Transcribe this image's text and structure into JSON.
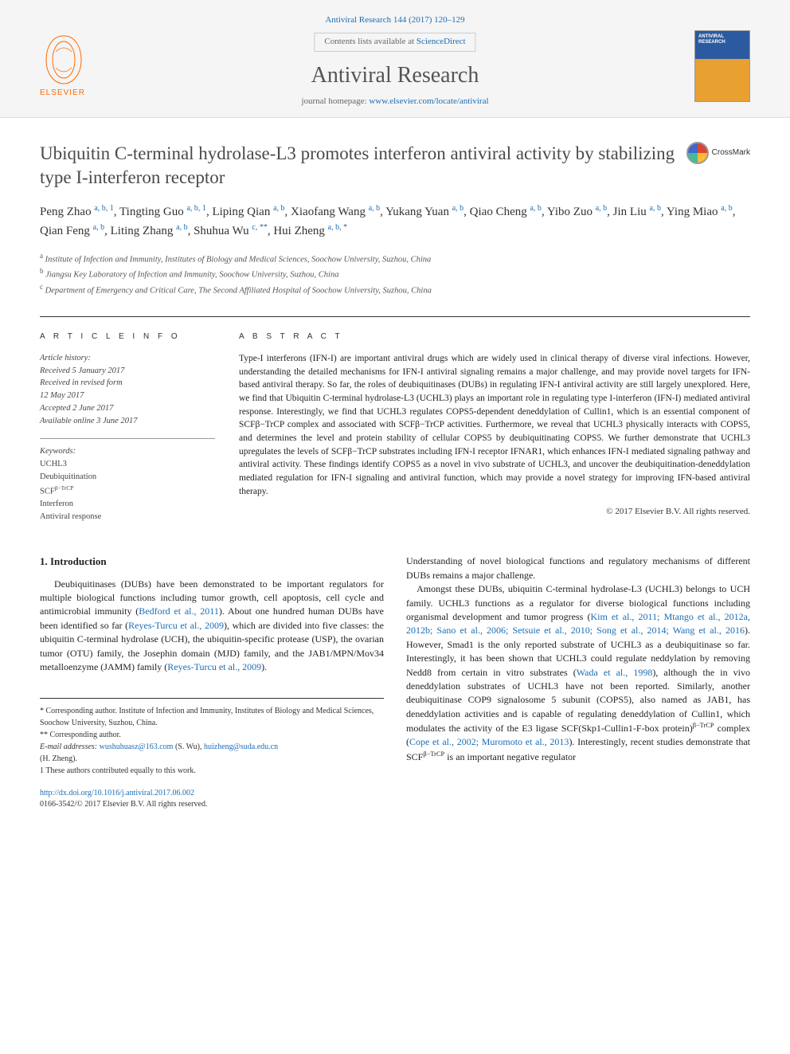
{
  "header": {
    "journal_ref": "Antiviral Research 144 (2017) 120–129",
    "contents_line_prefix": "Contents lists available at ",
    "contents_link": "ScienceDirect",
    "journal_name": "Antiviral Research",
    "homepage_prefix": "journal homepage: ",
    "homepage_url": "www.elsevier.com/locate/antiviral",
    "publisher": "ELSEVIER",
    "crossmark": "CrossMark"
  },
  "title": "Ubiquitin C-terminal hydrolase-L3 promotes interferon antiviral activity by stabilizing type I-interferon receptor",
  "authors_html": "Peng Zhao <sup>a, b, 1</sup>, Tingting Guo <sup>a, b, 1</sup>, Liping Qian <sup>a, b</sup>, Xiaofang Wang <sup>a, b</sup>, Yukang Yuan <sup>a, b</sup>, Qiao Cheng <sup>a, b</sup>, Yibo Zuo <sup>a, b</sup>, Jin Liu <sup>a, b</sup>, Ying Miao <sup>a, b</sup>, Qian Feng <sup>a, b</sup>, Liting Zhang <sup>a, b</sup>, Shuhua Wu <sup>c, **</sup>, Hui Zheng <sup>a, b, *</sup>",
  "affiliations": [
    {
      "sup": "a",
      "text": "Institute of Infection and Immunity, Institutes of Biology and Medical Sciences, Soochow University, Suzhou, China"
    },
    {
      "sup": "b",
      "text": "Jiangsu Key Laboratory of Infection and Immunity, Soochow University, Suzhou, China"
    },
    {
      "sup": "c",
      "text": "Department of Emergency and Critical Care, The Second Affiliated Hospital of Soochow University, Suzhou, China"
    }
  ],
  "article_info": {
    "heading": "A R T I C L E   I N F O",
    "history_heading": "Article history:",
    "history": [
      "Received 5 January 2017",
      "Received in revised form",
      "12 May 2017",
      "Accepted 2 June 2017",
      "Available online 3 June 2017"
    ],
    "keywords_heading": "Keywords:",
    "keywords": [
      "UCHL3",
      "Deubiquitination",
      "SCFβ−TrCP",
      "Interferon",
      "Antiviral response"
    ]
  },
  "abstract": {
    "heading": "A B S T R A C T",
    "text": "Type-I interferons (IFN-I) are important antiviral drugs which are widely used in clinical therapy of diverse viral infections. However, understanding the detailed mechanisms for IFN-I antiviral signaling remains a major challenge, and may provide novel targets for IFN-based antiviral therapy. So far, the roles of deubiquitinases (DUBs) in regulating IFN-I antiviral activity are still largely unexplored. Here, we find that Ubiquitin C-terminal hydrolase-L3 (UCHL3) plays an important role in regulating type I-interferon (IFN-I) mediated antiviral response. Interestingly, we find that UCHL3 regulates COPS5-dependent deneddylation of Cullin1, which is an essential component of SCFβ−TrCP complex and associated with SCFβ−TrCP activities. Furthermore, we reveal that UCHL3 physically interacts with COPS5, and determines the level and protein stability of cellular COPS5 by deubiquitinating COPS5. We further demonstrate that UCHL3 upregulates the levels of SCFβ−TrCP substrates including IFN-I receptor IFNAR1, which enhances IFN-I mediated signaling pathway and antiviral activity. These findings identify COPS5 as a novel in vivo substrate of UCHL3, and uncover the deubiquitination-deneddylation mediated regulation for IFN-I signaling and antiviral function, which may provide a novel strategy for improving IFN-based antiviral therapy.",
    "copyright": "© 2017 Elsevier B.V. All rights reserved."
  },
  "intro": {
    "heading": "1. Introduction",
    "col1_html": "Deubiquitinases (DUBs) have been demonstrated to be important regulators for multiple biological functions including tumor growth, cell apoptosis, cell cycle and antimicrobial immunity (<a href='#'>Bedford et al., 2011</a>). About one hundred human DUBs have been identified so far (<a href='#'>Reyes-Turcu et al., 2009</a>), which are divided into five classes: the ubiquitin C-terminal hydrolase (UCH), the ubiquitin-specific protease (USP), the ovarian tumor (OTU) family, the Josephin domain (MJD) family, and the JAB1/MPN/Mov34 metalloenzyme (JAMM) family (<a href='#'>Reyes-Turcu et al., 2009</a>).",
    "col2_html": "Understanding of novel biological functions and regulatory mechanisms of different DUBs remains a major challenge.<br>&nbsp;&nbsp;&nbsp;Amongst these DUBs, ubiquitin C-terminal hydrolase-L3 (UCHL3) belongs to UCH family. UCHL3 functions as a regulator for diverse biological functions including organismal development and tumor progress (<a href='#'>Kim et al., 2011; Mtango et al., 2012a, 2012b; Sano et al., 2006; Setsuie et al., 2010; Song et al., 2014; Wang et al., 2016</a>). However, Smad1 is the only reported substrate of UCHL3 as a deubiquitinase so far. Interestingly, it has been shown that UCHL3 could regulate neddylation by removing Nedd8 from certain in vitro substrates (<a href='#'>Wada et al., 1998</a>), although the in vivo deneddylation substrates of UCHL3 have not been reported. Similarly, another deubiquitinase COP9 signalosome 5 subunit (COPS5), also named as JAB1, has deneddylation activities and is capable of regulating deneddylation of Cullin1, which modulates the activity of the E3 ligase SCF(Skp1-Cullin1-F-box protein)<sup>β−TrCP</sup> complex (<a href='#'>Cope et al., 2002; Muromoto et al., 2013</a>). Interestingly, recent studies demonstrate that SCF<sup>β−TrCP</sup> is an important negative regulator"
  },
  "footnotes": {
    "star": "* Corresponding author. Institute of Infection and Immunity, Institutes of Biology and Medical Sciences, Soochow University, Suzhou, China.",
    "star2": "** Corresponding author.",
    "emails_label": "E-mail addresses:",
    "email1": "wushuhuasz@163.com",
    "email1_who": "(S. Wu),",
    "email2": "huizheng@suda.edu.cn",
    "email2_who": "(H. Zheng).",
    "equal": "1 These authors contributed equally to this work."
  },
  "doi": {
    "url": "http://dx.doi.org/10.1016/j.antiviral.2017.06.002",
    "issn_line": "0166-3542/© 2017 Elsevier B.V. All rights reserved."
  },
  "colors": {
    "link": "#1a6db5",
    "elsevier_orange": "#ff6a00",
    "heading_gray": "#4a4a4a"
  }
}
